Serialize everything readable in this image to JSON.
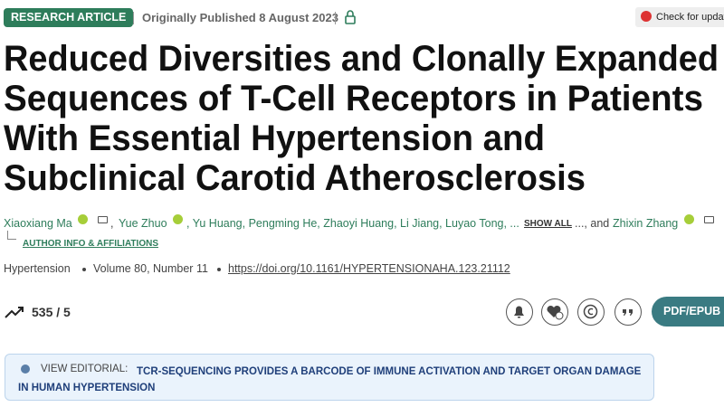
{
  "header": {
    "badge": "RESEARCH ARTICLE",
    "published": "Originally Published 8 August 2023",
    "check_updates": "Check for updates"
  },
  "title_lines": [
    "Reduced Diversities and Clonally Expanded",
    "Sequences of T-Cell Receptors in Patients",
    "With Essential Hypertension and",
    "Subclinical Carotid Atherosclerosis"
  ],
  "authors": [
    "Xiaoxiang Ma",
    ",",
    "Yue Zhuo",
    ", Yu Huang, Pengming He, Zhaoyi Huang, Li Jiang, Luyao Tong, ...",
    "SHOW ALL",
    "..., and",
    "Zhixin Zhang"
  ],
  "author_info": "AUTHOR INFO & AFFILIATIONS",
  "citation": {
    "journal": "Hypertension",
    "volume": "Volume 80, Number 11",
    "doi": "https://doi.org/10.1161/HYPERTENSIONAHA.123.21112"
  },
  "metrics": "535 / 5",
  "pdf_button": "PDF/EPUB",
  "editorial": {
    "label": "VIEW EDITORIAL:",
    "title": "TCR-SEQUENCING PROVIDES A BARCODE OF IMMUNE ACTIVATION AND TARGET ORGAN DAMAGE IN HUMAN HYPERTENSION"
  }
}
